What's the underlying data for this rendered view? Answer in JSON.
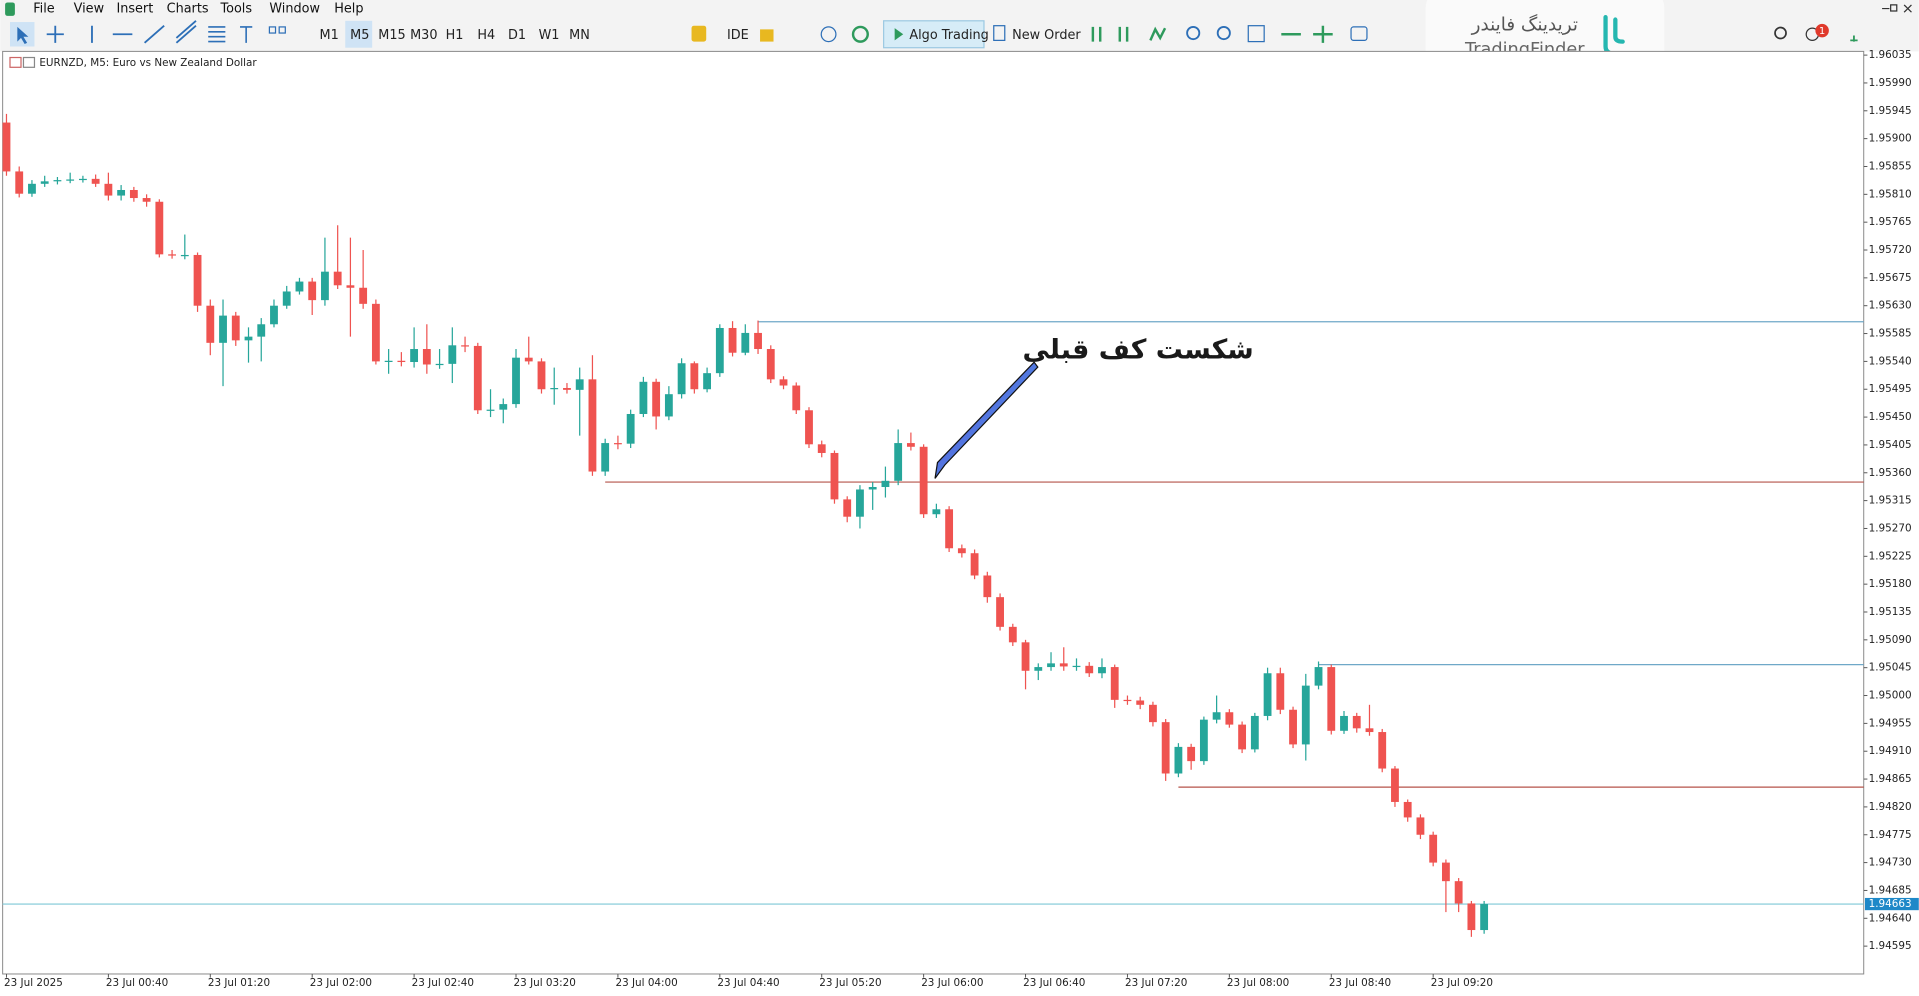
{
  "menu": [
    "File",
    "View",
    "Insert",
    "Charts",
    "Tools",
    "Window",
    "Help"
  ],
  "toolbar": {
    "periods": [
      "M1",
      "M5",
      "M15",
      "M30",
      "H1",
      "H4",
      "D1",
      "W1",
      "MN"
    ],
    "ide": "IDE",
    "algo": "Algo Trading",
    "order": "New Order",
    "badge": "1"
  },
  "logo": {
    "persian": "تریدینگ فایندر",
    "latin": "TradingFinder"
  },
  "chart_data": {
    "type": "candlestick",
    "title": "EURNZD, M5:  Euro vs New Zealand Dollar",
    "annotation": "شکست کف قبلی",
    "up_color": "#26a69a",
    "down_color": "#ef5350",
    "open": [
      1.95926,
      1.95847,
      1.95811,
      1.95827,
      1.95831,
      1.95833,
      1.95834,
      1.95835,
      1.95827,
      1.95808,
      1.95817,
      1.95804,
      1.95798,
      1.95713,
      1.95711,
      1.95712,
      1.9563,
      1.9557,
      1.95614,
      1.95574,
      1.9558,
      1.956,
      1.9563,
      1.95653,
      1.95669,
      1.95639,
      1.95685,
      1.95663,
      1.95659,
      1.95633,
      1.9554,
      1.95541,
      1.95539,
      1.9556,
      1.95535,
      1.95536,
      1.95566,
      1.95565,
      1.95461,
      1.95462,
      1.95471,
      1.95546,
      1.9554,
      1.95495,
      1.95497,
      1.95494,
      1.95511,
      1.95362,
      1.95408,
      1.95407,
      1.95455,
      1.95507,
      1.95451,
      1.95487,
      1.95537,
      1.95495,
      1.95521,
      1.95594,
      1.95554,
      1.95586,
      1.9556,
      1.95511,
      1.95501,
      1.95461,
      1.95406,
      1.95392,
      1.95317,
      1.95289,
      1.95333,
      1.95337,
      1.95347,
      1.95408,
      1.95402,
      1.95293,
      1.95301,
      1.95238,
      1.9523,
      1.95194,
      1.95159,
      1.95111,
      1.95086,
      1.9504,
      1.95046,
      1.95052,
      1.95047,
      1.95048,
      1.95036,
      1.95046,
      1.94993,
      1.94992,
      1.94985,
      1.94957,
      1.94874,
      1.94917,
      1.94894,
      1.94961,
      1.94973,
      1.94953,
      1.94913,
      1.94967,
      1.95036,
      1.94977,
      1.94921,
      1.95016,
      1.95046,
      1.94943,
      1.94967,
      1.94947,
      1.94941,
      1.94882,
      1.94828,
      1.94803,
      1.94775,
      1.9473,
      1.947,
      1.94664,
      1.94621
    ],
    "high": [
      1.9594,
      1.95855,
      1.95833,
      1.9584,
      1.95838,
      1.95845,
      1.9584,
      1.95842,
      1.95845,
      1.95825,
      1.95822,
      1.9581,
      1.95802,
      1.9572,
      1.95745,
      1.95716,
      1.9564,
      1.9564,
      1.9562,
      1.95595,
      1.9561,
      1.9564,
      1.95662,
      1.95675,
      1.95675,
      1.9574,
      1.9576,
      1.9574,
      1.9572,
      1.9564,
      1.9556,
      1.95555,
      1.95595,
      1.956,
      1.9556,
      1.95595,
      1.9558,
      1.9557,
      1.95495,
      1.9548,
      1.9556,
      1.9558,
      1.95545,
      1.9553,
      1.95505,
      1.9553,
      1.9555,
      1.95415,
      1.9542,
      1.95462,
      1.95515,
      1.95512,
      1.955,
      1.95545,
      1.9554,
      1.9553,
      1.956,
      1.95605,
      1.956,
      1.95606,
      1.95566,
      1.95516,
      1.95506,
      1.95466,
      1.95412,
      1.95396,
      1.95322,
      1.9534,
      1.95345,
      1.9537,
      1.9543,
      1.95425,
      1.95406,
      1.9531,
      1.95306,
      1.95244,
      1.95236,
      1.952,
      1.95165,
      1.95116,
      1.9509,
      1.95052,
      1.9507,
      1.95078,
      1.9506,
      1.95054,
      1.9506,
      1.9505,
      1.95,
      1.94998,
      1.9499,
      1.94962,
      1.94923,
      1.94922,
      1.94966,
      1.95,
      1.94978,
      1.94958,
      1.94972,
      1.95045,
      1.95045,
      1.94982,
      1.95035,
      1.95055,
      1.9505,
      1.94975,
      1.94972,
      1.94985,
      1.94946,
      1.94886,
      1.94832,
      1.94808,
      1.9478,
      1.94735,
      1.94705,
      1.94668,
      1.94668
    ],
    "low": [
      1.9584,
      1.95805,
      1.95806,
      1.95822,
      1.95826,
      1.95828,
      1.95829,
      1.95822,
      1.958,
      1.958,
      1.95798,
      1.9579,
      1.95708,
      1.95706,
      1.95705,
      1.9562,
      1.9555,
      1.955,
      1.95565,
      1.95538,
      1.9554,
      1.95595,
      1.95625,
      1.95648,
      1.95615,
      1.9563,
      1.95657,
      1.9558,
      1.95625,
      1.95535,
      1.9552,
      1.95532,
      1.9553,
      1.9552,
      1.95528,
      1.95505,
      1.95555,
      1.95455,
      1.9545,
      1.9544,
      1.95465,
      1.95535,
      1.95488,
      1.9547,
      1.95488,
      1.9542,
      1.95355,
      1.95355,
      1.95398,
      1.954,
      1.9545,
      1.9543,
      1.95445,
      1.9548,
      1.95488,
      1.9549,
      1.95515,
      1.95548,
      1.9555,
      1.95552,
      1.95505,
      1.95495,
      1.95455,
      1.954,
      1.95385,
      1.9531,
      1.9528,
      1.9527,
      1.953,
      1.9532,
      1.9534,
      1.95396,
      1.95287,
      1.95287,
      1.95232,
      1.95223,
      1.95188,
      1.9515,
      1.95105,
      1.9508,
      1.9501,
      1.95025,
      1.9504,
      1.9504,
      1.9504,
      1.9503,
      1.95028,
      1.9498,
      1.94985,
      1.94978,
      1.9495,
      1.94862,
      1.94868,
      1.9488,
      1.94888,
      1.94955,
      1.94948,
      1.94907,
      1.94908,
      1.9496,
      1.9497,
      1.94915,
      1.94895,
      1.9501,
      1.94937,
      1.94938,
      1.9494,
      1.94935,
      1.94876,
      1.9482,
      1.94796,
      1.94768,
      1.94724,
      1.9465,
      1.9465,
      1.9461,
      1.94615
    ],
    "close": [
      1.95847,
      1.95811,
      1.95827,
      1.95831,
      1.95833,
      1.95834,
      1.95835,
      1.95827,
      1.95808,
      1.95817,
      1.95804,
      1.95798,
      1.95713,
      1.95711,
      1.95712,
      1.9563,
      1.9557,
      1.95614,
      1.95574,
      1.9558,
      1.956,
      1.9563,
      1.95653,
      1.95669,
      1.95639,
      1.95685,
      1.95663,
      1.95659,
      1.95633,
      1.9554,
      1.95541,
      1.95539,
      1.9556,
      1.95535,
      1.95536,
      1.95566,
      1.95565,
      1.95461,
      1.95462,
      1.95471,
      1.95546,
      1.9554,
      1.95495,
      1.95497,
      1.95494,
      1.95511,
      1.95362,
      1.95408,
      1.95407,
      1.95455,
      1.95507,
      1.95451,
      1.95487,
      1.95537,
      1.95495,
      1.95521,
      1.95594,
      1.95554,
      1.95586,
      1.9556,
      1.95511,
      1.95501,
      1.95461,
      1.95406,
      1.95392,
      1.95317,
      1.95289,
      1.95333,
      1.95337,
      1.95347,
      1.95408,
      1.95402,
      1.95293,
      1.95301,
      1.95238,
      1.9523,
      1.95194,
      1.95159,
      1.95111,
      1.95086,
      1.9504,
      1.95046,
      1.95052,
      1.95047,
      1.95048,
      1.95036,
      1.95046,
      1.94993,
      1.94992,
      1.94985,
      1.94957,
      1.94874,
      1.94917,
      1.94894,
      1.94961,
      1.94973,
      1.94953,
      1.94913,
      1.94967,
      1.95036,
      1.94977,
      1.94921,
      1.95016,
      1.95046,
      1.94943,
      1.94967,
      1.94947,
      1.94941,
      1.94882,
      1.94828,
      1.94803,
      1.94775,
      1.9473,
      1.947,
      1.94664,
      1.94621,
      1.94663
    ],
    "levels": [
      {
        "value": 1.95604,
        "start": 59,
        "color": "#6fa8c8"
      },
      {
        "value": 1.95345,
        "start": 47,
        "color": "#b5534a"
      },
      {
        "value": 1.9505,
        "start": 103,
        "color": "#6fa8c8"
      },
      {
        "value": 1.94852,
        "start": 92,
        "color": "#b5534a"
      }
    ],
    "current_price": 1.94663,
    "current_color": "#7ec8d6",
    "xlim": [
      -0.3,
      145.8
    ],
    "xticks": [
      {
        "value": 0,
        "label": "23 Jul 2025"
      },
      {
        "value": 8,
        "label": "23 Jul 00:40"
      },
      {
        "value": 16,
        "label": "23 Jul 01:20"
      },
      {
        "value": 24,
        "label": "23 Jul 02:00"
      },
      {
        "value": 32,
        "label": "23 Jul 02:40"
      },
      {
        "value": 40,
        "label": "23 Jul 03:20"
      },
      {
        "value": 48,
        "label": "23 Jul 04:00"
      },
      {
        "value": 56,
        "label": "23 Jul 04:40"
      },
      {
        "value": 64,
        "label": "23 Jul 05:20"
      },
      {
        "value": 72,
        "label": "23 Jul 06:00"
      },
      {
        "value": 80,
        "label": "23 Jul 06:40"
      },
      {
        "value": 88,
        "label": "23 Jul 07:20"
      },
      {
        "value": 96,
        "label": "23 Jul 08:00"
      },
      {
        "value": 104,
        "label": "23 Jul 08:40"
      },
      {
        "value": 112,
        "label": "23 Jul 09:20"
      }
    ],
    "ylim": [
      1.9455,
      1.96041
    ],
    "yticks": [
      1.96035,
      {
        "value": 1.9599,
        "label": "1.95990"
      },
      1.95945,
      {
        "value": 1.959,
        "label": "1.95900"
      },
      1.95855,
      {
        "value": 1.9581,
        "label": "1.95810"
      },
      1.95765,
      {
        "value": 1.9572,
        "label": "1.95720"
      },
      1.95675,
      {
        "value": 1.9563,
        "label": "1.95630"
      },
      1.95585,
      {
        "value": 1.9554,
        "label": "1.95540"
      },
      1.95495,
      {
        "value": 1.9545,
        "label": "1.95450"
      },
      1.95405,
      {
        "value": 1.9536,
        "label": "1.95360"
      },
      1.95315,
      {
        "value": 1.9527,
        "label": "1.95270"
      },
      1.95225,
      {
        "value": 1.9518,
        "label": "1.95180"
      },
      1.95135,
      {
        "value": 1.9509,
        "label": "1.95090"
      },
      1.95045,
      {
        "value": 1.95,
        "label": "1.95000"
      },
      1.94955,
      {
        "value": 1.9491,
        "label": "1.94910"
      },
      1.94865,
      {
        "value": 1.9482,
        "label": "1.94820"
      },
      1.94775,
      {
        "value": 1.9473,
        "label": "1.94730"
      },
      1.94685,
      {
        "value": 1.9464,
        "label": "1.94640"
      },
      1.94595
    ]
  }
}
